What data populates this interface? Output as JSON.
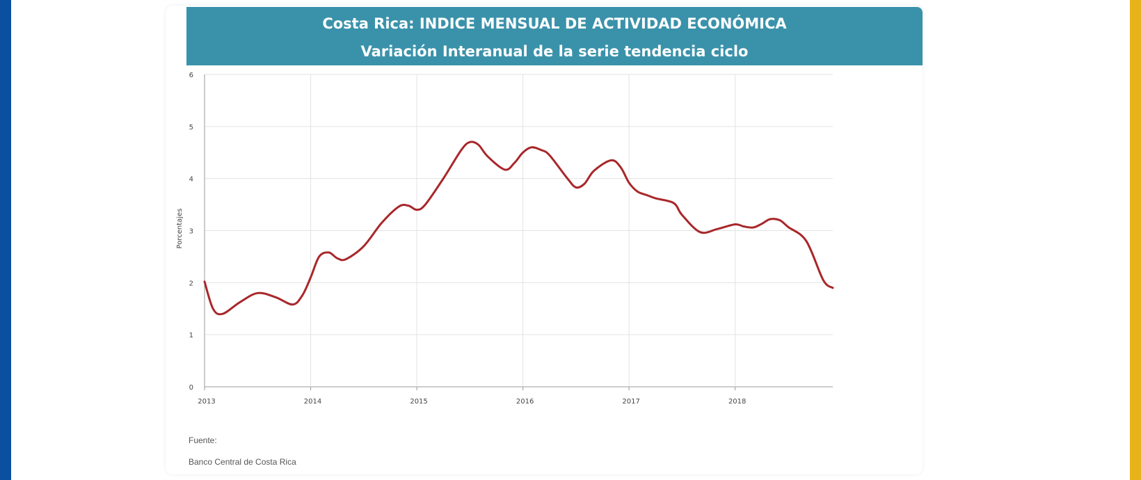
{
  "colors": {
    "left_stripe": "#0a4fa0",
    "right_stripe": "#e8b21a",
    "header_bg": "#3a92aa",
    "line": "#a8272a",
    "grid": "#e3e3e3",
    "axis": "#999999"
  },
  "header": {
    "title": "Costa Rica: INDICE MENSUAL DE ACTIVIDAD ECONÓMICA",
    "subtitle": "Variación Interanual de la serie tendencia ciclo"
  },
  "footer": {
    "source_label": "Fuente:",
    "source_value": "Banco Central de Costa Rica"
  },
  "chart_data": {
    "type": "line",
    "title": "Costa Rica: INDICE MENSUAL DE ACTIVIDAD ECONÓMICA",
    "subtitle": "Variación Interanual de la serie tendencia ciclo",
    "xlabel": "",
    "ylabel": "Porcentajes",
    "xlim": [
      2013.0,
      2018.92
    ],
    "ylim": [
      0,
      6
    ],
    "grid": true,
    "x_ticks": [
      "2013",
      "2014",
      "2015",
      "2016",
      "2017",
      "2018"
    ],
    "y_ticks": [
      "0",
      "1",
      "2",
      "3",
      "4",
      "5",
      "6"
    ],
    "series": [
      {
        "x": [
          2013.0,
          2013.08,
          2013.17,
          2013.33,
          2013.5,
          2013.67,
          2013.83,
          2013.92,
          2014.0,
          2014.08,
          2014.17,
          2014.25,
          2014.33,
          2014.5,
          2014.67,
          2014.83,
          2014.92,
          2015.0,
          2015.08,
          2015.25,
          2015.42,
          2015.5,
          2015.58,
          2015.67,
          2015.83,
          2015.92,
          2016.0,
          2016.08,
          2016.17,
          2016.25,
          2016.42,
          2016.5,
          2016.58,
          2016.67,
          2016.83,
          2016.92,
          2017.0,
          2017.08,
          2017.17,
          2017.25,
          2017.42,
          2017.5,
          2017.67,
          2017.83,
          2018.0,
          2018.08,
          2018.17,
          2018.25,
          2018.33,
          2018.42,
          2018.5,
          2018.67,
          2018.83,
          2018.92
        ],
        "values": [
          2.02,
          1.5,
          1.4,
          1.62,
          1.8,
          1.72,
          1.58,
          1.75,
          2.1,
          2.5,
          2.58,
          2.47,
          2.45,
          2.7,
          3.15,
          3.46,
          3.48,
          3.4,
          3.5,
          4.0,
          4.55,
          4.7,
          4.65,
          4.42,
          4.17,
          4.3,
          4.5,
          4.6,
          4.55,
          4.45,
          4.0,
          3.83,
          3.9,
          4.15,
          4.35,
          4.22,
          3.92,
          3.75,
          3.68,
          3.62,
          3.53,
          3.3,
          2.97,
          3.03,
          3.12,
          3.08,
          3.06,
          3.13,
          3.22,
          3.2,
          3.07,
          2.8,
          2.05,
          1.9
        ]
      }
    ]
  }
}
